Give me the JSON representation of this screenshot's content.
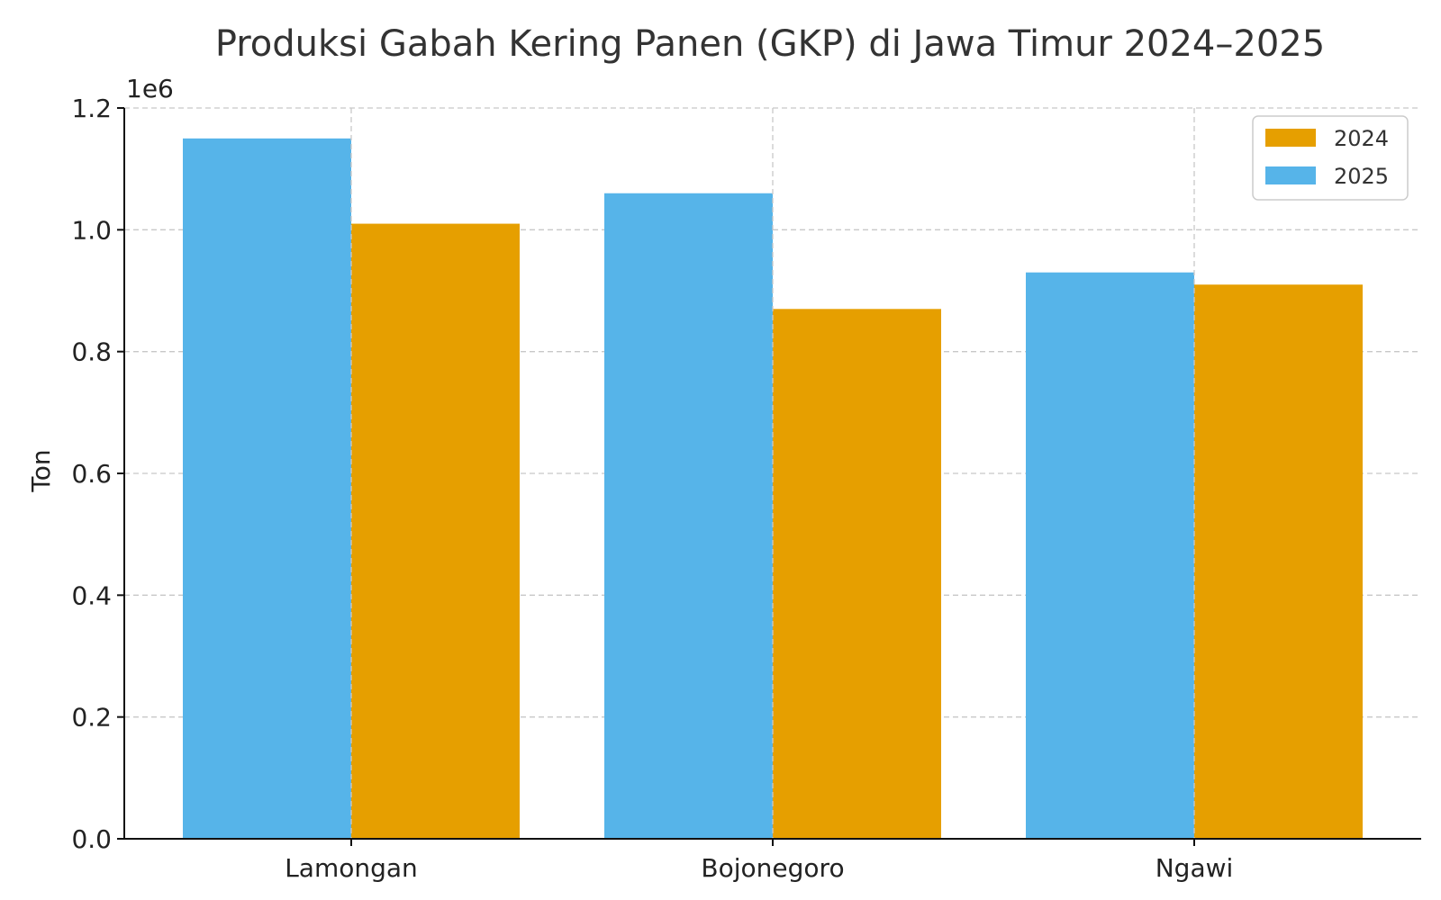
{
  "chart_data": {
    "type": "bar",
    "title": "Produksi Gabah Kering Panen (GKP) di Jawa Timur 2024–2025",
    "xlabel": "",
    "ylabel": "Ton",
    "y_offset_label": "1e6",
    "ylim": [
      0,
      1200000
    ],
    "yticks": [
      0,
      200000,
      400000,
      600000,
      800000,
      1000000,
      1200000
    ],
    "ytick_labels": [
      "0.0",
      "0.2",
      "0.4",
      "0.6",
      "0.8",
      "1.0",
      "1.2"
    ],
    "categories": [
      "Lamongan",
      "Bojonegoro",
      "Ngawi"
    ],
    "grid": true,
    "legend_position": "top-right",
    "series": [
      {
        "name": "2025",
        "color": "#56B4E9",
        "values": [
          1150000,
          1060000,
          930000
        ]
      },
      {
        "name": "2024",
        "color": "#E69F00",
        "values": [
          1010000,
          870000,
          910000
        ]
      }
    ],
    "legend_order": [
      "2024",
      "2025"
    ]
  }
}
